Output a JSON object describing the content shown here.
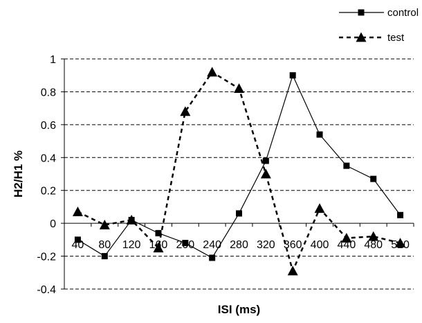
{
  "chart_data": {
    "type": "line",
    "title": "",
    "xlabel": "ISI (ms)",
    "ylabel": "H2/H1 %",
    "x_categories": [
      "40",
      "80",
      "120",
      "160",
      "200",
      "240",
      "280",
      "320",
      "360",
      "400",
      "440",
      "480",
      "520"
    ],
    "y_ticks": [
      "-0.4",
      "-0.2",
      "0",
      "0.2",
      "0.4",
      "0.6",
      "0.8",
      "1"
    ],
    "ylim": [
      -0.4,
      1
    ],
    "grid": "horizontal dashed",
    "legend_position": "top-right",
    "series": [
      {
        "name": "control",
        "marker": "square",
        "line_style": "solid",
        "color": "#000000",
        "values": [
          -0.1,
          -0.2,
          0.02,
          -0.06,
          -0.12,
          -0.21,
          0.06,
          0.38,
          0.9,
          0.54,
          0.35,
          0.27,
          0.05
        ]
      },
      {
        "name": "test",
        "marker": "triangle",
        "line_style": "dashed",
        "color": "#000000",
        "values": [
          0.07,
          -0.01,
          0.02,
          -0.15,
          0.68,
          0.92,
          0.82,
          0.3,
          -0.29,
          0.09,
          -0.09,
          -0.08,
          -0.12
        ]
      }
    ]
  }
}
